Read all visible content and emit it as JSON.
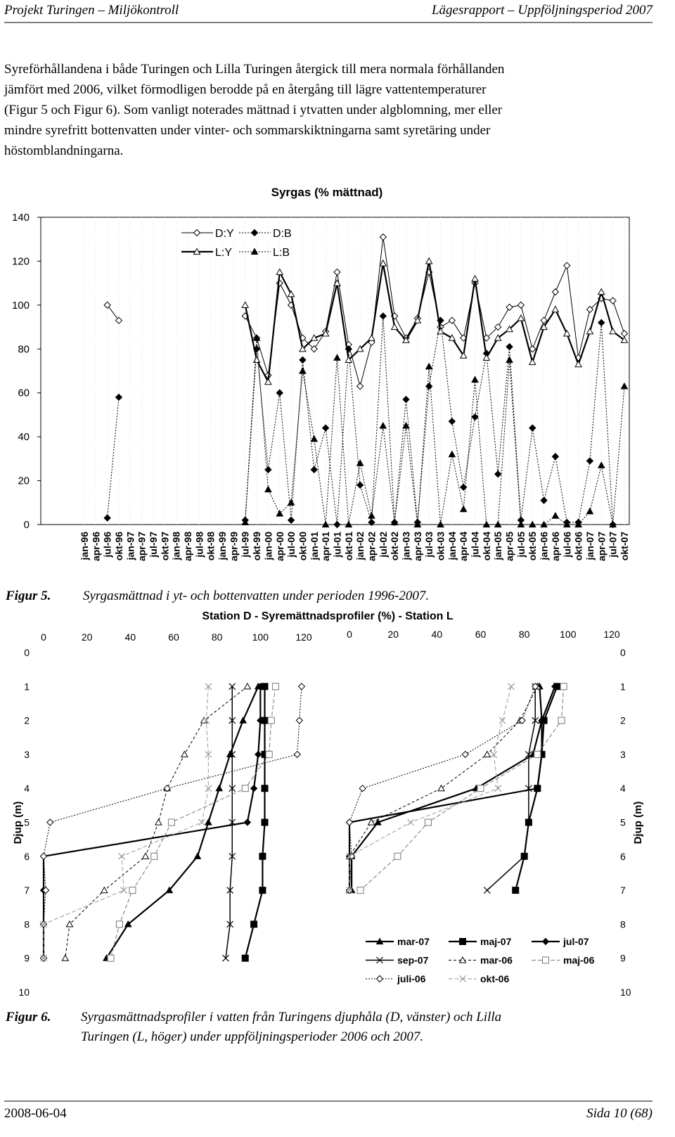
{
  "header": {
    "left": "Projekt Turingen – Miljökontroll",
    "right": "Lägesrapport – Uppföljningsperiod 2007"
  },
  "paragraph": [
    "Syreförhållandena i både Turingen och Lilla Turingen återgick till mera normala förhållanden",
    "jämfört med 2006, vilket förmodligen berodde på en återgång till lägre vattentemperaturer",
    "(Figur 5 och Figur 6). Som vanligt noterades mättnad i ytvatten under algblomning, mer eller",
    "mindre syrefritt bottenvatten under vinter- och sommarskiktningarna samt syretäring under",
    "höstomblandningarna."
  ],
  "figure5_caption": {
    "label": "Figur 5.",
    "text": "Syrgasmättnad i yt- och bottenvatten under perioden 1996-2007."
  },
  "figure6_caption": {
    "label": "Figur 6.",
    "lines": [
      "Syrgasmättnadsprofiler i vatten från Turingens djuphåla (D, vänster) och Lilla",
      "Turingen (L, höger) under uppföljningsperioder 2006 och 2007."
    ]
  },
  "footer": {
    "left": "2008-06-04",
    "right": "Sida 10 (68)"
  },
  "chart_data": [
    {
      "type": "line",
      "title": "Syrgas (% mättnad)",
      "categories": [
        "jan-96",
        "apr-96",
        "jul-96",
        "okt-96",
        "jan-97",
        "apr-97",
        "jul-97",
        "okt-97",
        "jan-98",
        "apr-98",
        "jul-98",
        "okt-98",
        "jan-99",
        "apr-99",
        "jul-99",
        "okt-99",
        "jan-00",
        "apr-00",
        "jul-00",
        "okt-00",
        "jan-01",
        "apr-01",
        "jul-01",
        "okt-01",
        "jan-02",
        "apr-02",
        "jul-02",
        "okt-02",
        "jan-03",
        "apr-03",
        "jul-03",
        "okt-03",
        "jan-04",
        "apr-04",
        "jul-04",
        "okt-04",
        "jan-05",
        "apr-05",
        "jul-05",
        "okt-05",
        "jan-06",
        "apr-06",
        "jul-06",
        "okt-06",
        "jan-07",
        "apr-07",
        "jul-07",
        "okt-07"
      ],
      "ylim": [
        0,
        140
      ],
      "yticks": [
        0,
        20,
        40,
        60,
        80,
        100,
        120,
        140
      ],
      "legend": "top-left",
      "series": [
        {
          "name": "D:Y",
          "color": "#000000",
          "marker": "diamond",
          "filled": false,
          "dash": "none",
          "width": 1,
          "values": [
            null,
            null,
            100,
            93,
            null,
            null,
            null,
            null,
            null,
            null,
            null,
            null,
            null,
            null,
            95,
            85,
            68,
            110,
            100,
            85,
            80,
            88,
            115,
            82,
            63,
            83,
            131,
            95,
            85,
            94,
            115,
            90,
            93,
            85,
            110,
            85,
            90,
            99,
            100,
            80,
            93,
            106,
            118,
            76,
            98,
            103,
            102,
            87
          ]
        },
        {
          "name": "D:B",
          "color": "#000000",
          "marker": "diamond",
          "filled": true,
          "dash": "2 2",
          "width": 1,
          "values": [
            null,
            null,
            3,
            58,
            null,
            null,
            null,
            null,
            null,
            null,
            null,
            null,
            null,
            null,
            2,
            80,
            25,
            60,
            2,
            75,
            25,
            44,
            0,
            80,
            18,
            1,
            95,
            1,
            57,
            1,
            63,
            93,
            47,
            17,
            49,
            78,
            23,
            81,
            2,
            44,
            11,
            31,
            1,
            1,
            29,
            92,
            0,
            null
          ]
        },
        {
          "name": "L:Y",
          "color": "#000000",
          "marker": "triangle",
          "filled": false,
          "dash": "none",
          "width": 2.2,
          "values": [
            null,
            null,
            null,
            null,
            null,
            null,
            null,
            null,
            null,
            null,
            null,
            null,
            null,
            null,
            100,
            75,
            65,
            115,
            105,
            80,
            85,
            87,
            110,
            75,
            80,
            85,
            119,
            90,
            84,
            93,
            120,
            88,
            85,
            77,
            112,
            76,
            85,
            89,
            94,
            74,
            90,
            98,
            87,
            73,
            88,
            106,
            88,
            84
          ]
        },
        {
          "name": "L:B",
          "color": "#000000",
          "marker": "triangle",
          "filled": true,
          "dash": "2 2",
          "width": 1,
          "values": [
            null,
            null,
            null,
            null,
            null,
            null,
            null,
            null,
            null,
            null,
            null,
            null,
            null,
            null,
            1,
            85,
            16,
            5,
            10,
            70,
            39,
            0,
            76,
            0,
            28,
            4,
            45,
            1,
            45,
            0,
            72,
            0,
            32,
            7,
            66,
            0,
            0,
            75,
            0,
            0,
            0,
            4,
            0,
            0,
            6,
            27,
            0,
            63
          ]
        }
      ]
    },
    {
      "type": "profile",
      "title": "Station D - Syremättnadsprofiler (%) - Station L",
      "ylabel": "Djup (m)",
      "xlim": [
        0,
        120
      ],
      "xticks": [
        0,
        20,
        40,
        60,
        80,
        100,
        120
      ],
      "ylim": [
        0,
        10
      ],
      "yticks": [
        0,
        1,
        2,
        3,
        4,
        5,
        6,
        7,
        8,
        9,
        10
      ],
      "depths": [
        1,
        2,
        3,
        4,
        5,
        6,
        7,
        8,
        9
      ],
      "legend": "bottom-right",
      "series": [
        {
          "name": "mar-07",
          "color": "#000000",
          "marker": "triangle",
          "filled": true,
          "dash": "none",
          "width": 2.2,
          "D": [
            99,
            92,
            86,
            81,
            76,
            71,
            58,
            39,
            29
          ],
          "L": [
            87,
            88,
            84,
            58,
            13,
            1,
            1,
            null,
            null
          ]
        },
        {
          "name": "maj-07",
          "color": "#000000",
          "marker": "square",
          "filled": true,
          "dash": "none",
          "width": 2.2,
          "D": [
            102,
            102,
            102,
            102,
            102,
            101,
            101,
            97,
            93
          ],
          "L": [
            95,
            89,
            88,
            86,
            82,
            80,
            76,
            null,
            null
          ]
        },
        {
          "name": "jul-07",
          "color": "#000000",
          "marker": "diamond",
          "filled": true,
          "dash": "none",
          "width": 2.2,
          "D": [
            100,
            100,
            99,
            97,
            94,
            0,
            0,
            0,
            0
          ],
          "L": [
            94,
            88,
            88,
            86,
            0,
            0,
            0,
            null,
            null
          ]
        },
        {
          "name": "sep-07",
          "color": "#000000",
          "marker": "x",
          "filled": false,
          "dash": "none",
          "width": 1.5,
          "D": [
            87,
            87,
            87,
            87,
            87,
            87,
            86,
            86,
            84
          ],
          "L": [
            85,
            85,
            82,
            82,
            82,
            80,
            63,
            null,
            null
          ]
        },
        {
          "name": "mar-06",
          "color": "#000000",
          "marker": "triangle",
          "filled": false,
          "dash": "4 3",
          "width": 1,
          "D": [
            94,
            74,
            65,
            57,
            53,
            47,
            28,
            12,
            10
          ],
          "L": [
            86,
            78,
            63,
            42,
            10,
            0,
            0,
            null,
            null
          ]
        },
        {
          "name": "maj-06",
          "color": "#777777",
          "marker": "square",
          "filled": false,
          "dash": "6 3",
          "width": 1,
          "D": [
            107,
            105,
            104,
            93,
            59,
            51,
            41,
            35,
            31
          ],
          "L": [
            98,
            97,
            86,
            60,
            36,
            22,
            5,
            null,
            null
          ]
        },
        {
          "name": "juli-06",
          "color": "#000000",
          "marker": "diamond",
          "filled": false,
          "dash": "2 2",
          "width": 1,
          "D": [
            119,
            118,
            117,
            57,
            3,
            0,
            1,
            0,
            0
          ],
          "L": [
            85,
            79,
            53,
            6,
            0,
            1,
            0,
            null,
            null
          ]
        },
        {
          "name": "okt-06",
          "color": "#999999",
          "marker": "x",
          "filled": false,
          "dash": "6 3",
          "width": 1,
          "D": [
            76,
            75,
            76,
            76,
            73,
            36,
            37,
            0,
            0
          ],
          "L": [
            74,
            70,
            66,
            68,
            28,
            0,
            0,
            null,
            null
          ]
        }
      ]
    }
  ]
}
